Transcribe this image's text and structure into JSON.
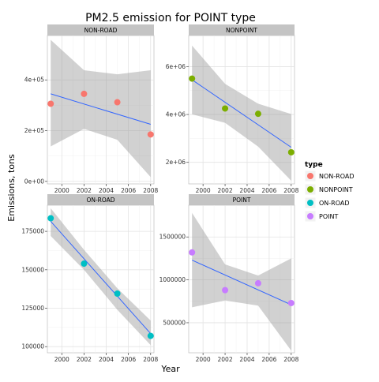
{
  "title": "PM2.5 emission for POINT type",
  "xlabel": "Year",
  "ylabel": "Emissions, tons",
  "legend": {
    "title": "type",
    "entries": [
      {
        "label": "NON-ROAD",
        "color": "#F8766D"
      },
      {
        "label": "NONPOINT",
        "color": "#7CAE00"
      },
      {
        "label": "ON-ROAD",
        "color": "#00BFC4"
      },
      {
        "label": "POINT",
        "color": "#C77CFF"
      }
    ]
  },
  "chart_data": [
    {
      "type": "scatter",
      "panel": "NON-ROAD",
      "x": [
        1999,
        2002,
        2005,
        2008
      ],
      "y": [
        306000,
        345000,
        312000,
        185000
      ],
      "color": "#F8766D",
      "xlim": [
        1998.7,
        2008.3
      ],
      "ylim": [
        -10000,
        575000
      ],
      "xticks": [
        2000,
        2002,
        2004,
        2006,
        2008
      ],
      "yticks": [
        0,
        200000,
        400000
      ],
      "ytick_labels": [
        "0e+00",
        "2e+05",
        "4e+05"
      ],
      "fit": {
        "y_start": 345000,
        "y_end": 225000
      },
      "ci": {
        "upper": [
          558000,
          438000,
          422000,
          438000
        ],
        "lower": [
          138000,
          207000,
          164000,
          17000
        ]
      }
    },
    {
      "type": "scatter",
      "panel": "NONPOINT",
      "x": [
        1999,
        2002,
        2005,
        2008
      ],
      "y": [
        5500000,
        4250000,
        4030000,
        2420000
      ],
      "color": "#7CAE00",
      "xlim": [
        1998.7,
        2008.3
      ],
      "ylim": [
        1100000,
        7300000
      ],
      "xticks": [
        2000,
        2002,
        2004,
        2006,
        2008
      ],
      "yticks": [
        2000000,
        4000000,
        6000000
      ],
      "ytick_labels": [
        "2e+06",
        "4e+06",
        "6e+06"
      ],
      "fit": {
        "y_start": 5450000,
        "y_end": 2630000
      },
      "ci": {
        "upper": [
          6880000,
          5280000,
          4450000,
          4020000
        ],
        "lower": [
          4010000,
          3650000,
          2660000,
          1230000
        ]
      }
    },
    {
      "type": "scatter",
      "panel": "ON-ROAD",
      "x": [
        1999,
        2002,
        2005,
        2008
      ],
      "y": [
        183500,
        154000,
        134500,
        107000
      ],
      "color": "#00BFC4",
      "xlim": [
        1998.7,
        2008.3
      ],
      "ylim": [
        96000,
        192000
      ],
      "xticks": [
        2000,
        2002,
        2004,
        2006,
        2008
      ],
      "yticks": [
        100000,
        125000,
        150000,
        175000
      ],
      "ytick_labels": [
        "100000",
        "125000",
        "150000",
        "175000"
      ],
      "fit": {
        "y_start": 181500,
        "y_end": 108500
      },
      "ci": {
        "upper": [
          190000,
          163000,
          138000,
          117000
        ],
        "lower": [
          172000,
          150000,
          124000,
          101000
        ]
      }
    },
    {
      "type": "scatter",
      "panel": "POINT",
      "x": [
        1999,
        2002,
        2005,
        2008
      ],
      "y": [
        1320000,
        880000,
        960000,
        730000
      ],
      "color": "#C77CFF",
      "xlim": [
        1998.7,
        2008.3
      ],
      "ylim": [
        150000,
        1870000
      ],
      "xticks": [
        2000,
        2002,
        2004,
        2006,
        2008
      ],
      "yticks": [
        500000,
        1000000,
        1500000
      ],
      "ytick_labels": [
        "500000",
        "1000000",
        "1500000"
      ],
      "fit": {
        "y_start": 1230000,
        "y_end": 710000
      },
      "ci": {
        "upper": [
          1780000,
          1180000,
          1050000,
          1250000
        ],
        "lower": [
          680000,
          760000,
          700000,
          175000
        ]
      }
    }
  ]
}
